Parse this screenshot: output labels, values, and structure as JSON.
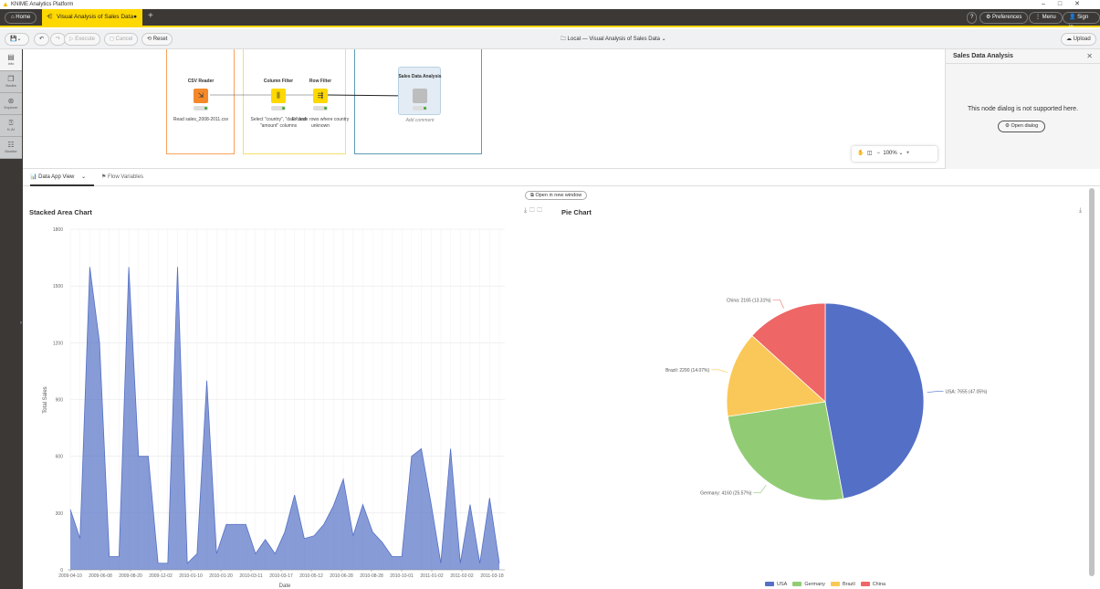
{
  "window": {
    "title": "KNIME Analytics Platform"
  },
  "tabs": {
    "home": "Home",
    "workflow": "Visual Analysis of Sales Data",
    "add": "+"
  },
  "topright": {
    "help": "?",
    "preferences": "Preferences",
    "menu": "Menu",
    "signin": "Sign in"
  },
  "toolbar": {
    "execute": "Execute",
    "cancel": "Cancel",
    "reset": "Reset",
    "breadcrumb": "Local — Visual Analysis of Sales Data",
    "upload": "Upload"
  },
  "sidebar": {
    "items": [
      {
        "label": "Info"
      },
      {
        "label": "Nodes"
      },
      {
        "label": "Explorer"
      },
      {
        "label": "K-AI"
      },
      {
        "label": "Monitor"
      }
    ]
  },
  "workflow": {
    "nodes": [
      {
        "title": "CSV Reader",
        "desc": "Read sales_2008-2011.csv",
        "color": "#f5892a"
      },
      {
        "title": "Column Filter",
        "desc": "Select \"country\", \"date\" and \"amount\" columns",
        "color": "#ffd800"
      },
      {
        "title": "Row Filter",
        "desc": "Exclude rows where country unknown",
        "color": "#ffd800"
      },
      {
        "title": "Sales Data Analysis",
        "desc": "Add comment",
        "color": "#bdbdbd"
      }
    ],
    "zoom": "100%"
  },
  "right_panel": {
    "title": "Sales Data Analysis",
    "message": "This node dialog is not supported here.",
    "button": "Open dialog"
  },
  "view_tabs": {
    "data_app": "Data App View",
    "flow_vars": "Flow Variables",
    "open_window": "Open in new window"
  },
  "chart_data": [
    {
      "type": "area",
      "title": "Stacked Area Chart",
      "xlabel": "Date",
      "ylabel": "Total Sales",
      "ylim": [
        0,
        1800
      ],
      "yticks": [
        0,
        300,
        600,
        900,
        1200,
        1500,
        1800
      ],
      "grid": true,
      "color": "#5470c6",
      "x_tick_labels": [
        "2009-04-10",
        "2009-06-08",
        "2009-08-20",
        "2009-12-02",
        "2010-01-10",
        "2010-01-20",
        "2010-03-11",
        "2010-03-17",
        "2010-05-12",
        "2010-06-28",
        "2010-08-28",
        "2010-10-01",
        "2011-01-02",
        "2011-02-02",
        "2011-03-18"
      ],
      "values": [
        320,
        165,
        1600,
        1200,
        70,
        70,
        1600,
        600,
        600,
        35,
        35,
        1600,
        35,
        85,
        1000,
        85,
        240,
        240,
        240,
        85,
        160,
        85,
        200,
        395,
        165,
        180,
        240,
        340,
        480,
        180,
        345,
        200,
        145,
        70,
        70,
        600,
        640,
        350,
        35,
        640,
        35,
        345,
        35,
        380,
        35
      ]
    },
    {
      "type": "pie",
      "title": "Pie Chart",
      "legend": "bottom",
      "slices": [
        {
          "name": "USA",
          "value": 7655,
          "label": "USA: 7655 (47.05%)",
          "color": "#5470c6"
        },
        {
          "name": "Germany",
          "value": 4160,
          "label": "Germany: 4160 (25.57%)",
          "color": "#91cc75"
        },
        {
          "name": "Brazil",
          "value": 2290,
          "label": "Brazil: 2290 (14.07%)",
          "color": "#fac858"
        },
        {
          "name": "China",
          "value": 2165,
          "label": "China: 2165 (13.31%)",
          "color": "#ee6666"
        }
      ]
    }
  ]
}
